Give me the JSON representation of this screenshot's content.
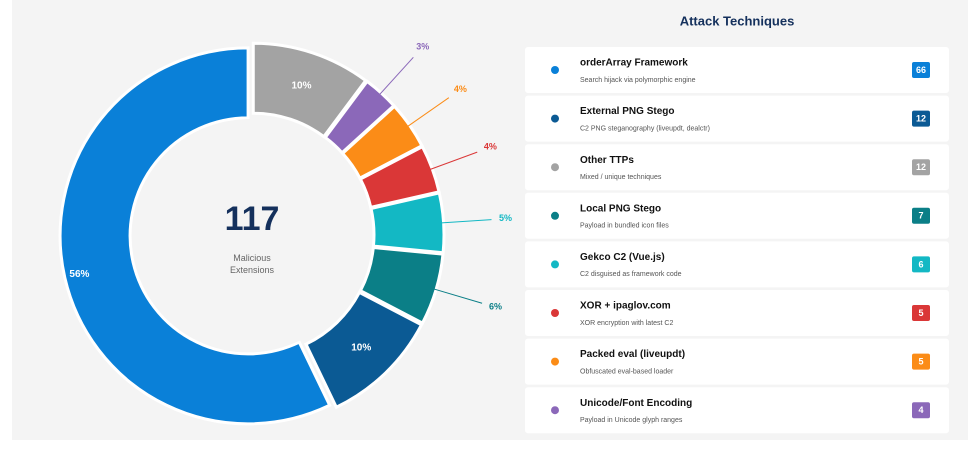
{
  "chart_data": {
    "type": "pie",
    "values": [
      10,
      3,
      4,
      4,
      5,
      6,
      10,
      56
    ],
    "value_labels": [
      "10%",
      "3%",
      "4%",
      "4%",
      "5%",
      "6%",
      "10%",
      "56%"
    ],
    "colors": [
      "#a3a3a3",
      "#8b68b9",
      "#fb8c17",
      "#da3737",
      "#13b8c4",
      "#0b7f87",
      "#0b5a94",
      "#0a80d8"
    ],
    "center_value": 117,
    "center_label": "Malicious Extensions"
  },
  "techniques": {
    "title": "Attack Techniques",
    "items": [
      {
        "name": "orderArray Framework",
        "description": "Search hijack via polymorphic engine",
        "count": 66,
        "color": "#0a80d8"
      },
      {
        "name": "External PNG Stego",
        "description": "C2 PNG steganography (liveupdt, dealctr)",
        "count": 12,
        "color": "#0b5a94"
      },
      {
        "name": "Other TTPs",
        "description": "Mixed / unique techniques",
        "count": 12,
        "color": "#a3a3a3"
      },
      {
        "name": "Local PNG Stego",
        "description": "Payload in bundled icon files",
        "count": 7,
        "color": "#0b7f87"
      },
      {
        "name": "Gekco C2 (Vue.js)",
        "description": "C2 disguised as framework code",
        "count": 6,
        "color": "#13b8c4"
      },
      {
        "name": "XOR + ipaglov.com",
        "description": "XOR encryption with latest C2",
        "count": 5,
        "color": "#da3737"
      },
      {
        "name": "Packed eval (liveupdt)",
        "description": "Obfuscated eval-based loader",
        "count": 5,
        "color": "#fb8c17"
      },
      {
        "name": "Unicode/Font Encoding",
        "description": "Payload in Unicode glyph ranges",
        "count": 4,
        "color": "#8b68b9"
      }
    ]
  }
}
